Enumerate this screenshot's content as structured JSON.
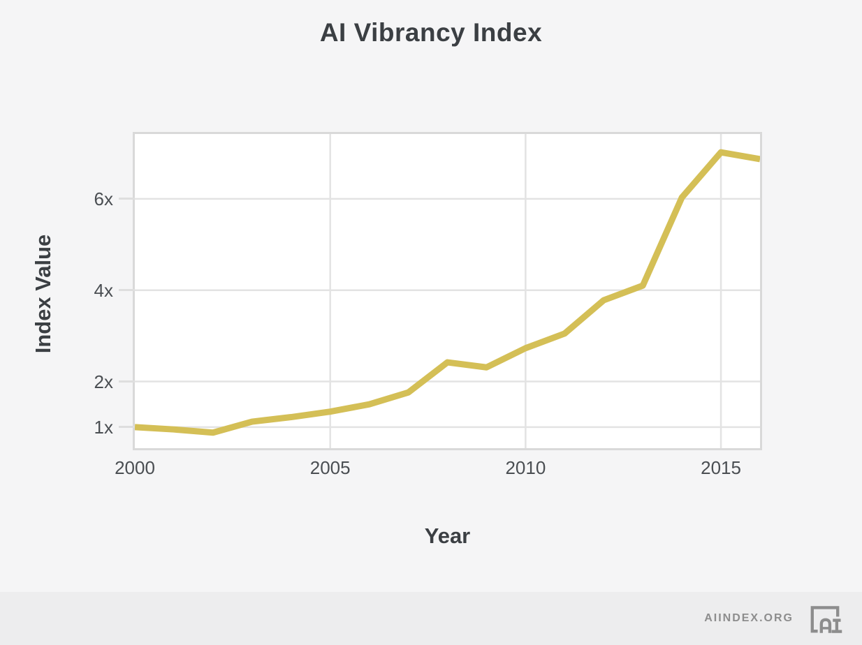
{
  "chart_data": {
    "type": "line",
    "title": "AI Vibrancy Index",
    "xlabel": "Year",
    "ylabel": "Index Value",
    "x": [
      2000,
      2001,
      2002,
      2003,
      2004,
      2005,
      2006,
      2007,
      2008,
      2009,
      2010,
      2011,
      2012,
      2013,
      2014,
      2015,
      2016
    ],
    "series": [
      {
        "name": "AI Vibrancy Index",
        "color": "#d4bf56",
        "values": [
          1.0,
          0.95,
          0.88,
          1.12,
          1.22,
          1.34,
          1.5,
          1.76,
          2.42,
          2.31,
          2.73,
          3.05,
          3.78,
          4.1,
          6.03,
          7.02,
          6.87
        ]
      }
    ],
    "xlim": [
      2000,
      2016
    ],
    "ylim": [
      0.54,
      7.42
    ],
    "xticks": [
      {
        "value": 2000,
        "label": "2000"
      },
      {
        "value": 2005,
        "label": "2005"
      },
      {
        "value": 2010,
        "label": "2010"
      },
      {
        "value": 2015,
        "label": "2015"
      }
    ],
    "yticks": [
      {
        "value": 1,
        "label": "1x"
      },
      {
        "value": 2,
        "label": "2x"
      },
      {
        "value": 4,
        "label": "4x"
      },
      {
        "value": 6,
        "label": "6x"
      }
    ],
    "grid": true,
    "legend_position": "none",
    "plot_background": "#ffffff",
    "grid_color": "#e3e3e3",
    "line_width": 9
  },
  "footer": {
    "brand": "AIINDEX.ORG",
    "logo": "ai-index-logo"
  }
}
